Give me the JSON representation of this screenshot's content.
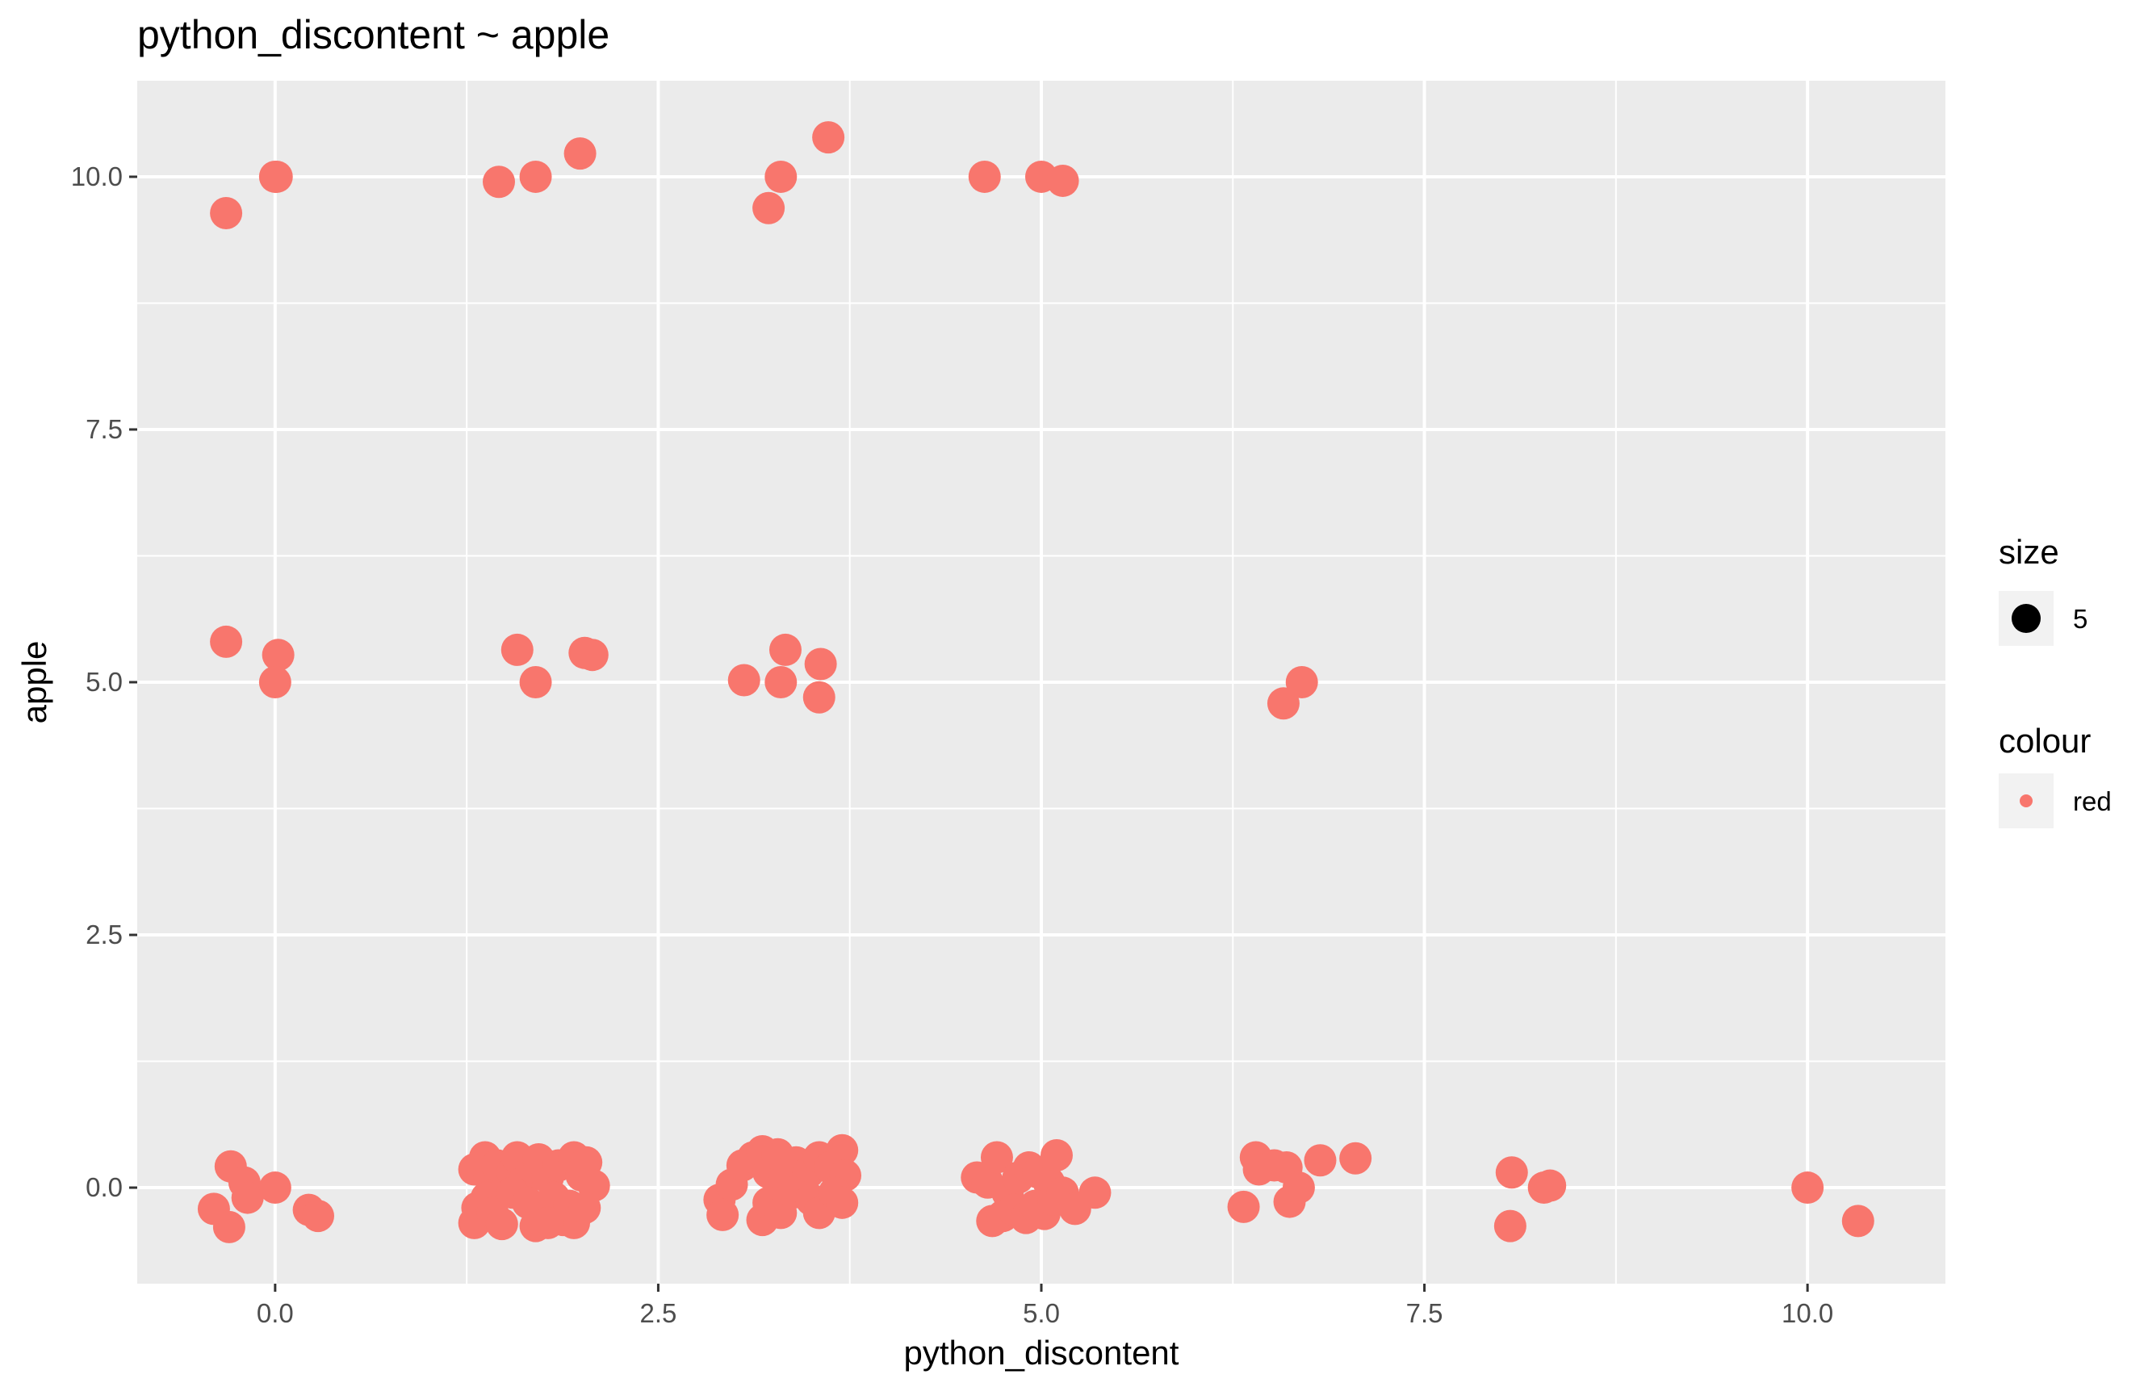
{
  "chart_data": {
    "type": "scatter",
    "title": "python_discontent ~ apple",
    "xlabel": "python_discontent",
    "ylabel": "apple",
    "xlim": [
      -0.9,
      10.9
    ],
    "ylim": [
      -0.95,
      10.95
    ],
    "x_ticks": [
      0,
      2.5,
      5,
      7.5,
      10
    ],
    "x_tick_labels": [
      "0.0",
      "2.5",
      "5.0",
      "7.5",
      "10.0"
    ],
    "y_ticks": [
      0,
      2.5,
      5,
      7.5,
      10
    ],
    "y_tick_labels": [
      "0.0",
      "2.5",
      "5.0",
      "7.5",
      "10.0"
    ],
    "grid": true,
    "point_color": "#F8766D",
    "panel_background": "#EBEBEB",
    "legend": {
      "placement": "right",
      "size": {
        "title": "size",
        "label": "5"
      },
      "colour": {
        "title": "colour",
        "label": "red"
      }
    },
    "points": [
      {
        "x": -0.32,
        "y": 9.64
      },
      {
        "x": 0.0,
        "y": 10.0
      },
      {
        "x": 0.01,
        "y": 10.0
      },
      {
        "x": 1.46,
        "y": 9.95
      },
      {
        "x": 1.7,
        "y": 10.0
      },
      {
        "x": 1.99,
        "y": 10.23
      },
      {
        "x": 3.22,
        "y": 9.69
      },
      {
        "x": 3.3,
        "y": 10.0
      },
      {
        "x": 3.61,
        "y": 10.39
      },
      {
        "x": 4.63,
        "y": 10.0
      },
      {
        "x": 5.0,
        "y": 10.0
      },
      {
        "x": 5.14,
        "y": 9.96
      },
      {
        "x": -0.32,
        "y": 5.4
      },
      {
        "x": 0.02,
        "y": 5.27
      },
      {
        "x": 0.0,
        "y": 5.0
      },
      {
        "x": 1.58,
        "y": 5.32
      },
      {
        "x": 1.7,
        "y": 5.0
      },
      {
        "x": 2.02,
        "y": 5.29
      },
      {
        "x": 2.07,
        "y": 5.27
      },
      {
        "x": 3.06,
        "y": 5.02
      },
      {
        "x": 3.3,
        "y": 5.0
      },
      {
        "x": 3.33,
        "y": 5.32
      },
      {
        "x": 3.56,
        "y": 5.18
      },
      {
        "x": 3.55,
        "y": 4.85
      },
      {
        "x": 6.58,
        "y": 4.79
      },
      {
        "x": 6.7,
        "y": 5.0
      },
      {
        "x": -0.4,
        "y": -0.21
      },
      {
        "x": -0.29,
        "y": 0.21
      },
      {
        "x": -0.2,
        "y": 0.05
      },
      {
        "x": -0.18,
        "y": -0.1
      },
      {
        "x": -0.3,
        "y": -0.39
      },
      {
        "x": 0.0,
        "y": 0.0
      },
      {
        "x": 0.22,
        "y": -0.22
      },
      {
        "x": 0.28,
        "y": -0.28
      },
      {
        "x": 1.3,
        "y": 0.18
      },
      {
        "x": 1.37,
        "y": 0.3
      },
      {
        "x": 1.4,
        "y": 0.1
      },
      {
        "x": 1.45,
        "y": 0.22
      },
      {
        "x": 1.55,
        "y": 0.15
      },
      {
        "x": 1.58,
        "y": 0.3
      },
      {
        "x": 1.62,
        "y": 0.05
      },
      {
        "x": 1.68,
        "y": 0.2
      },
      {
        "x": 1.72,
        "y": 0.28
      },
      {
        "x": 1.78,
        "y": 0.1
      },
      {
        "x": 1.85,
        "y": 0.22
      },
      {
        "x": 1.95,
        "y": 0.3
      },
      {
        "x": 2.0,
        "y": 0.12
      },
      {
        "x": 2.03,
        "y": 0.25
      },
      {
        "x": 2.08,
        "y": 0.02
      },
      {
        "x": 1.32,
        "y": -0.2
      },
      {
        "x": 1.3,
        "y": -0.35
      },
      {
        "x": 1.38,
        "y": -0.1
      },
      {
        "x": 1.42,
        "y": -0.25
      },
      {
        "x": 1.48,
        "y": -0.36
      },
      {
        "x": 1.55,
        "y": -0.05
      },
      {
        "x": 1.65,
        "y": -0.15
      },
      {
        "x": 1.7,
        "y": -0.38
      },
      {
        "x": 1.76,
        "y": -0.28
      },
      {
        "x": 1.82,
        "y": -0.1
      },
      {
        "x": 1.88,
        "y": -0.32
      },
      {
        "x": 1.92,
        "y": -0.18
      },
      {
        "x": 1.95,
        "y": -0.35
      },
      {
        "x": 2.02,
        "y": -0.2
      },
      {
        "x": 1.78,
        "y": -0.35
      },
      {
        "x": 2.9,
        "y": -0.12
      },
      {
        "x": 2.92,
        "y": -0.27
      },
      {
        "x": 2.98,
        "y": 0.03
      },
      {
        "x": 3.05,
        "y": 0.22
      },
      {
        "x": 3.12,
        "y": 0.3
      },
      {
        "x": 3.18,
        "y": 0.36
      },
      {
        "x": 3.22,
        "y": 0.15
      },
      {
        "x": 3.28,
        "y": 0.33
      },
      {
        "x": 3.32,
        "y": 0.05
      },
      {
        "x": 3.4,
        "y": 0.25
      },
      {
        "x": 3.48,
        "y": 0.15
      },
      {
        "x": 3.55,
        "y": 0.3
      },
      {
        "x": 3.62,
        "y": 0.2
      },
      {
        "x": 3.7,
        "y": 0.37
      },
      {
        "x": 3.72,
        "y": 0.12
      },
      {
        "x": 3.18,
        "y": -0.32
      },
      {
        "x": 3.22,
        "y": -0.15
      },
      {
        "x": 3.3,
        "y": -0.25
      },
      {
        "x": 3.38,
        "y": -0.05
      },
      {
        "x": 3.5,
        "y": -0.12
      },
      {
        "x": 3.55,
        "y": -0.25
      },
      {
        "x": 3.65,
        "y": -0.05
      },
      {
        "x": 3.7,
        "y": -0.15
      },
      {
        "x": 4.58,
        "y": 0.1
      },
      {
        "x": 4.65,
        "y": 0.05
      },
      {
        "x": 4.71,
        "y": 0.3
      },
      {
        "x": 4.78,
        "y": -0.05
      },
      {
        "x": 4.85,
        "y": 0.1
      },
      {
        "x": 4.92,
        "y": 0.2
      },
      {
        "x": 4.98,
        "y": 0.15
      },
      {
        "x": 5.05,
        "y": 0.05
      },
      {
        "x": 5.1,
        "y": 0.32
      },
      {
        "x": 4.68,
        "y": -0.33
      },
      {
        "x": 4.75,
        "y": -0.28
      },
      {
        "x": 4.82,
        "y": -0.22
      },
      {
        "x": 4.9,
        "y": -0.3
      },
      {
        "x": 4.96,
        "y": -0.18
      },
      {
        "x": 5.02,
        "y": -0.26
      },
      {
        "x": 5.08,
        "y": -0.12
      },
      {
        "x": 5.14,
        "y": -0.05
      },
      {
        "x": 5.22,
        "y": -0.21
      },
      {
        "x": 5.35,
        "y": -0.05
      },
      {
        "x": 6.32,
        "y": -0.19
      },
      {
        "x": 6.4,
        "y": 0.3
      },
      {
        "x": 6.42,
        "y": 0.18
      },
      {
        "x": 6.52,
        "y": 0.22
      },
      {
        "x": 6.6,
        "y": 0.2
      },
      {
        "x": 6.62,
        "y": -0.14
      },
      {
        "x": 6.68,
        "y": 0.0
      },
      {
        "x": 6.82,
        "y": 0.27
      },
      {
        "x": 7.05,
        "y": 0.29
      },
      {
        "x": 8.07,
        "y": 0.15
      },
      {
        "x": 8.06,
        "y": -0.38
      },
      {
        "x": 8.28,
        "y": 0.0
      },
      {
        "x": 8.32,
        "y": 0.02
      },
      {
        "x": 10.0,
        "y": 0.0
      },
      {
        "x": 10.33,
        "y": -0.33
      }
    ]
  }
}
